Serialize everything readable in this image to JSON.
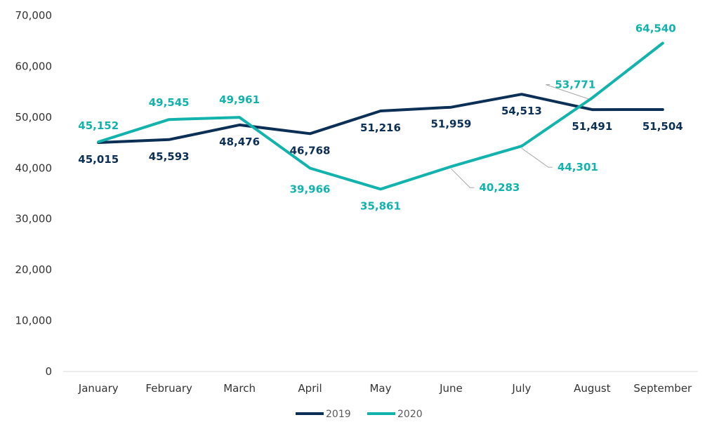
{
  "chart_data": {
    "type": "line",
    "categories": [
      "January",
      "February",
      "March",
      "April",
      "May",
      "June",
      "July",
      "August",
      "September"
    ],
    "ylim": [
      0,
      70000
    ],
    "yticks": [
      "0",
      "10,000",
      "20,000",
      "30,000",
      "40,000",
      "50,000",
      "60,000",
      "70,000"
    ],
    "grid": false,
    "legend_position": "bottom",
    "series": [
      {
        "name": "2019",
        "color": "#0c2f56",
        "values": [
          45015,
          45593,
          48476,
          46768,
          51216,
          51959,
          54513,
          51491,
          51504
        ],
        "labels": [
          "45,015",
          "45,593",
          "48,476",
          "46,768",
          "51,216",
          "51,959",
          "54,513",
          "51,491",
          "51,504"
        ]
      },
      {
        "name": "2020",
        "color": "#12b2ad",
        "values": [
          45152,
          49545,
          49961,
          39966,
          35861,
          40283,
          44301,
          53771,
          64540
        ],
        "labels": [
          "45,152",
          "49,545",
          "49,961",
          "39,966",
          "35,861",
          "40,283",
          "44,301",
          "53,771",
          "64,540"
        ]
      }
    ]
  }
}
